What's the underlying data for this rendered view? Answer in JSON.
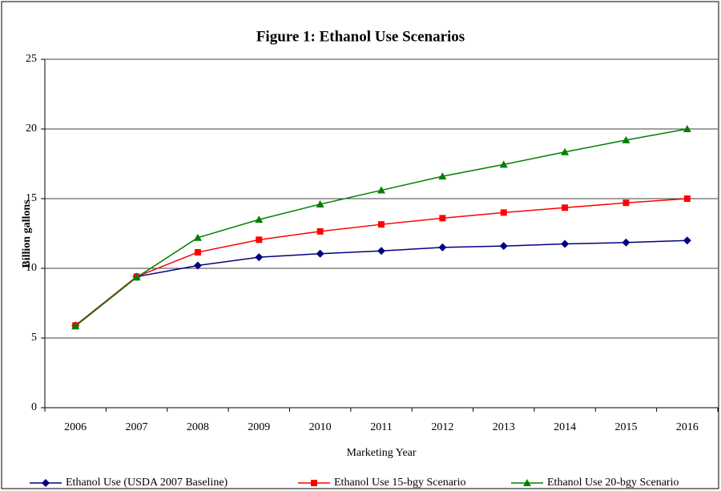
{
  "chart_data": {
    "type": "line",
    "title": "Figure 1:  Ethanol Use Scenarios",
    "x_label": "Marketing Year",
    "y_label": "Billion gallons",
    "categories": [
      "2006",
      "2007",
      "2008",
      "2009",
      "2010",
      "2011",
      "2012",
      "2013",
      "2014",
      "2015",
      "2016"
    ],
    "series": [
      {
        "name": "Ethanol Use (USDA 2007 Baseline)",
        "color": "#000080",
        "marker": "diamond",
        "values": [
          5.9,
          9.4,
          10.2,
          10.8,
          11.05,
          11.25,
          11.5,
          11.6,
          11.75,
          11.85,
          12.0
        ]
      },
      {
        "name": "Ethanol Use 15-bgy Scenario",
        "color": "#ff0000",
        "marker": "square",
        "values": [
          5.9,
          9.4,
          11.15,
          12.05,
          12.65,
          13.15,
          13.6,
          14.0,
          14.35,
          14.7,
          15.0
        ]
      },
      {
        "name": "Ethanol Use 20-bgy Scenario",
        "color": "#008000",
        "marker": "triangle",
        "values": [
          5.85,
          9.35,
          12.2,
          13.5,
          14.6,
          15.6,
          16.6,
          17.45,
          18.35,
          19.2,
          20.0
        ]
      }
    ],
    "ylim": [
      0,
      25
    ],
    "yticks": [
      0,
      5,
      10,
      15,
      20,
      25
    ],
    "grid": true,
    "legend": "bottom"
  }
}
